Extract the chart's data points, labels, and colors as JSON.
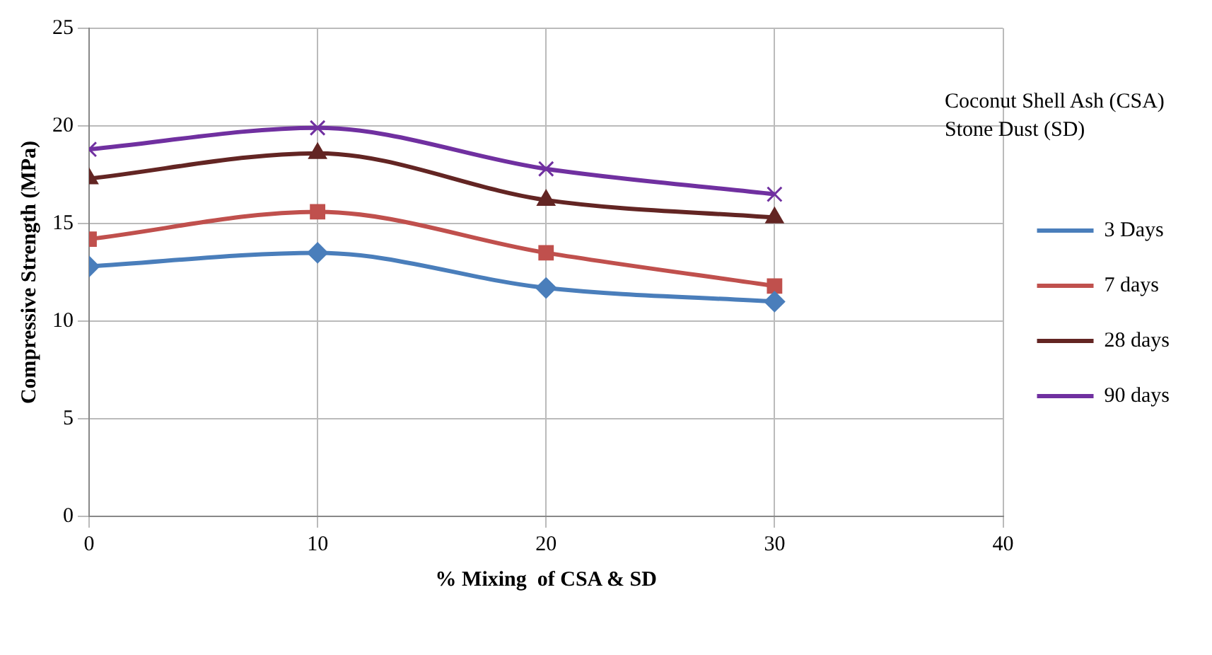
{
  "chart_data": {
    "type": "line",
    "xlabel": "% Mixing  of CSA & SD",
    "ylabel": "Compressive Strength (MPa)",
    "legend_title": "Coconut Shell Ash (CSA)\nStone Dust (SD)",
    "x": [
      0,
      10,
      20,
      30
    ],
    "xlim": [
      0,
      40
    ],
    "xticks": [
      0,
      10,
      20,
      30,
      40
    ],
    "ylim": [
      0,
      25
    ],
    "yticks": [
      0,
      5,
      10,
      15,
      20,
      25
    ],
    "grid": true,
    "legend": "right",
    "series": [
      {
        "name": "3 Days",
        "color": "#4a7ebb",
        "marker": "diamond",
        "values": [
          12.8,
          13.5,
          11.7,
          11.0
        ]
      },
      {
        "name": "7 days",
        "color": "#c0504d",
        "marker": "square",
        "values": [
          14.2,
          15.6,
          13.5,
          11.8
        ]
      },
      {
        "name": "28 days",
        "color": "#632523",
        "marker": "triangle",
        "values": [
          17.3,
          18.6,
          16.2,
          15.3
        ]
      },
      {
        "name": "90 days",
        "color": "#7030a0",
        "marker": "cross",
        "values": [
          18.8,
          19.9,
          17.8,
          16.5
        ]
      }
    ]
  }
}
